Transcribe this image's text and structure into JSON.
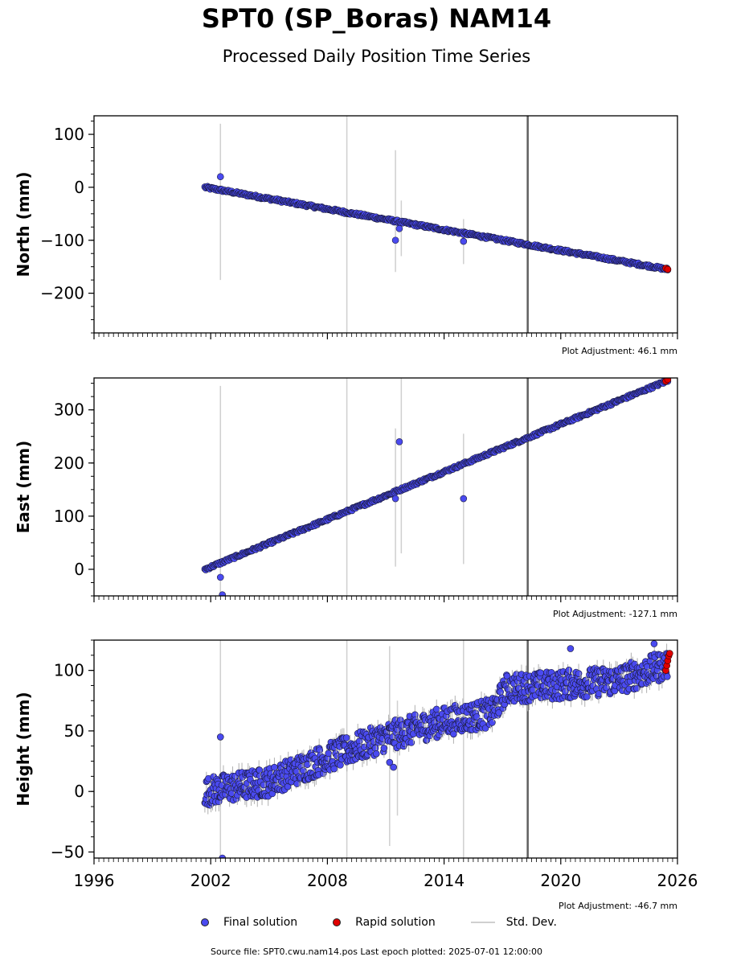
{
  "header": {
    "title": "SPT0 (SP_Boras) NAM14",
    "subtitle": "Processed Daily Position Time Series"
  },
  "legend": {
    "final_label": "Final solution",
    "rapid_label": "Rapid solution",
    "std_label": "Std. Dev."
  },
  "footer": {
    "source": "Source file: SPT0.cwu.nam14.pos  Last epoch plotted: 2025-07-01 12:00:00"
  },
  "colors": {
    "final": "#4a4af0",
    "rapid": "#e00000",
    "std": "#cfcfcf",
    "equipment_change": "#606060"
  },
  "chart_data": [
    {
      "type": "scatter",
      "ylabel": "North (mm)",
      "xlim": [
        1996,
        2026
      ],
      "ylim": [
        -275,
        135
      ],
      "yticks": [
        100,
        0,
        -100,
        -200
      ],
      "ytick_labels": [
        "100",
        "0",
        "−100",
        "−200"
      ],
      "xtick_labels_shown": false,
      "adjustment": "Plot Adjustment: 46.1 mm",
      "trend": {
        "x": [
          2001.7,
          2025.5
        ],
        "y": [
          0,
          -155
        ]
      },
      "scatter_noise": 2.5,
      "equipment_change_x": 2018.3,
      "series": [
        {
          "name": "Final solution",
          "points": [
            [
              2002.5,
              20
            ],
            [
              2011.5,
              -100
            ],
            [
              2011.7,
              -78
            ],
            [
              2015.0,
              -102
            ]
          ]
        },
        {
          "name": "Rapid solution",
          "points": [
            [
              2025.4,
              -153
            ],
            [
              2025.5,
              -155
            ]
          ]
        },
        {
          "name": "Std. Dev.",
          "bars": [
            [
              2002.5,
              -175,
              120
            ],
            [
              2009.0,
              -275,
              135
            ],
            [
              2011.5,
              -160,
              70
            ],
            [
              2011.8,
              -130,
              -25
            ],
            [
              2015.0,
              -145,
              -60
            ]
          ]
        }
      ]
    },
    {
      "type": "scatter",
      "ylabel": "East (mm)",
      "xlim": [
        1996,
        2026
      ],
      "ylim": [
        -50,
        360
      ],
      "yticks": [
        300,
        200,
        100,
        0
      ],
      "ytick_labels": [
        "300",
        "200",
        "100",
        "0"
      ],
      "xtick_labels_shown": false,
      "adjustment": "Plot Adjustment: -127.1 mm",
      "trend": {
        "x": [
          2001.7,
          2025.5
        ],
        "y": [
          0,
          355
        ]
      },
      "scatter_noise": 2.5,
      "equipment_change_x": 2018.3,
      "series": [
        {
          "name": "Final solution",
          "points": [
            [
              2002.5,
              -15
            ],
            [
              2002.6,
              -48
            ],
            [
              2011.5,
              133
            ],
            [
              2011.7,
              240
            ],
            [
              2015.0,
              133
            ]
          ]
        },
        {
          "name": "Rapid solution",
          "points": [
            [
              2025.4,
              354
            ],
            [
              2025.5,
              357
            ]
          ]
        },
        {
          "name": "Std. Dev.",
          "bars": [
            [
              2002.5,
              -50,
              345
            ],
            [
              2009.0,
              -50,
              360
            ],
            [
              2011.5,
              5,
              265
            ],
            [
              2011.8,
              30,
              360
            ],
            [
              2015.0,
              10,
              255
            ],
            [
              2018.3,
              -50,
              360
            ]
          ]
        }
      ]
    },
    {
      "type": "scatter",
      "ylabel": "Height (mm)",
      "xlim": [
        1996,
        2026
      ],
      "ylim": [
        -55,
        125
      ],
      "yticks": [
        100,
        50,
        0,
        -50
      ],
      "ytick_labels": [
        "100",
        "50",
        "0",
        "−50"
      ],
      "xticks": [
        1996,
        2002,
        2008,
        2014,
        2020,
        2026
      ],
      "xtick_labels": [
        "1996",
        "2002",
        "2008",
        "2014",
        "2020",
        "2026"
      ],
      "xtick_labels_shown": true,
      "adjustment": "Plot Adjustment: -46.7 mm",
      "trend": {
        "x": [
          2001.7,
          2002.5,
          2005.0,
          2008.0,
          2011.0,
          2014.0,
          2016.5,
          2017.2,
          2020.0,
          2023.0,
          2025.5
        ],
        "y": [
          0,
          2,
          8,
          28,
          45,
          58,
          65,
          85,
          88,
          92,
          105
        ]
      },
      "scatter_noise": 12,
      "equipment_change_x": 2018.3,
      "series": [
        {
          "name": "Final solution",
          "points": [
            [
              2002.5,
              45
            ],
            [
              2002.6,
              -55
            ],
            [
              2011.2,
              24
            ],
            [
              2011.4,
              20
            ],
            [
              2020.5,
              118
            ],
            [
              2024.8,
              122
            ]
          ]
        },
        {
          "name": "Rapid solution",
          "points": [
            [
              2025.4,
              100
            ],
            [
              2025.45,
              104
            ],
            [
              2025.5,
              108
            ],
            [
              2025.55,
              112
            ],
            [
              2025.6,
              114
            ]
          ]
        },
        {
          "name": "Std. Dev.",
          "bars": [
            [
              2002.5,
              -55,
              125
            ],
            [
              2009.0,
              -55,
              125
            ],
            [
              2011.2,
              -45,
              120
            ],
            [
              2011.6,
              -20,
              75
            ],
            [
              2015.0,
              -55,
              125
            ],
            [
              2018.3,
              -55,
              125
            ]
          ]
        }
      ]
    }
  ]
}
